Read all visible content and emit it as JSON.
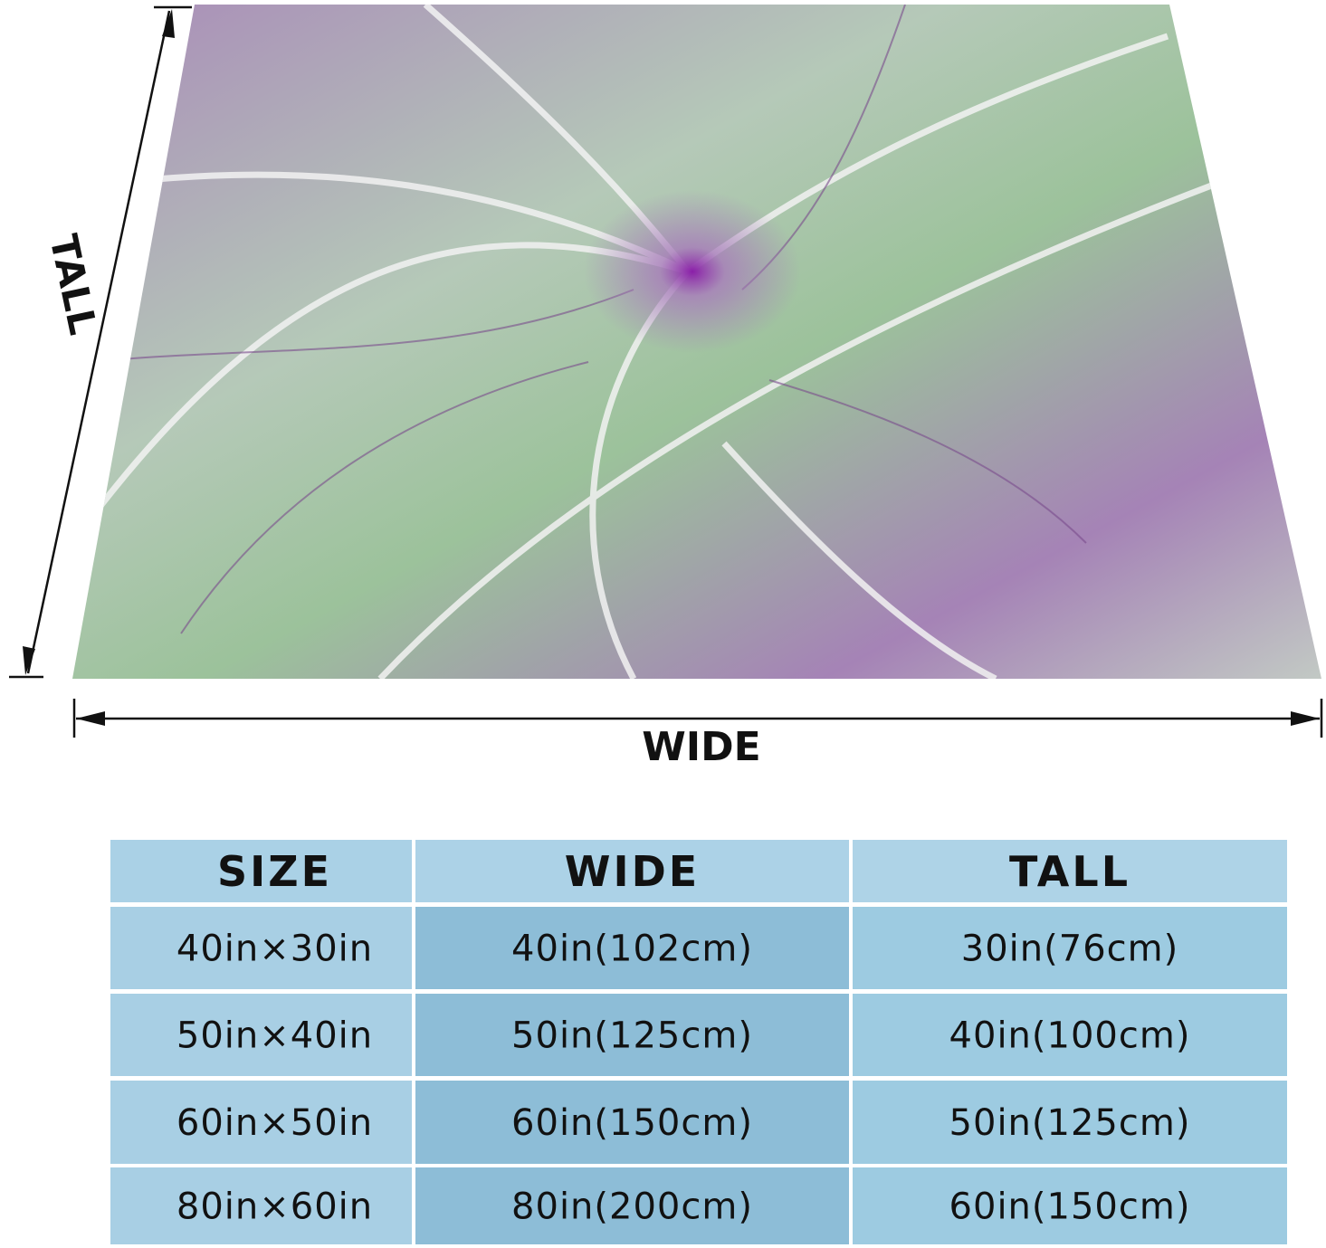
{
  "labels": {
    "tall": "TALL",
    "wide": "WIDE"
  },
  "table": {
    "header": [
      "SIZE",
      "WIDE",
      "TALL"
    ],
    "rows": [
      [
        "40in×30in",
        "40in(102cm)",
        "30in(76cm)"
      ],
      [
        "50in×40in",
        "50in(125cm)",
        "40in(100cm)"
      ],
      [
        "60in×50in",
        "60in(150cm)",
        "50in(125cm)"
      ],
      [
        "80in×60in",
        "80in(200cm)",
        "60in(150cm)"
      ]
    ]
  }
}
